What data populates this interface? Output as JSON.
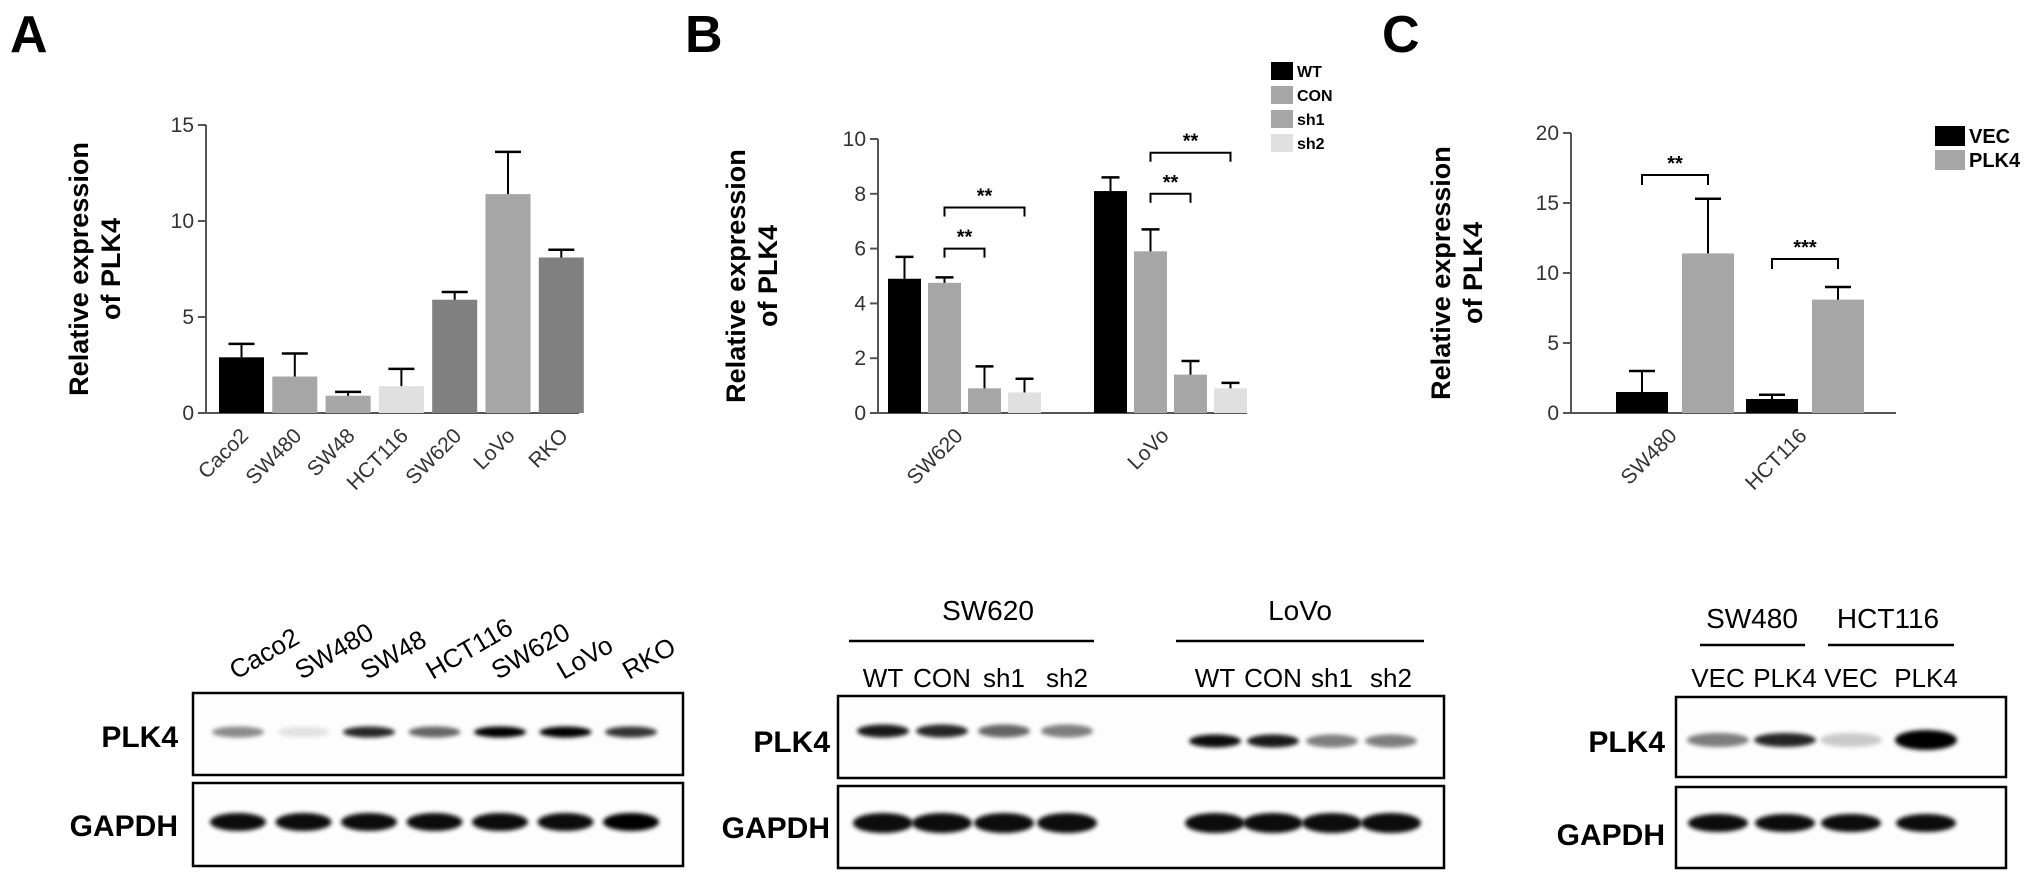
{
  "panels": {
    "a": {
      "letter": "A"
    },
    "b": {
      "letter": "B"
    },
    "c": {
      "letter": "C"
    }
  },
  "colors": {
    "black": "#000000",
    "dark_gray": "#808080",
    "mid_gray": "#a6a6a6",
    "light_gray": "#e0e0e0",
    "axis": "#555555"
  },
  "chart_data": [
    {
      "type": "bar",
      "panel": "A",
      "ylabel": [
        "Relative expression",
        "of PLK4"
      ],
      "ylim": [
        0,
        15
      ],
      "yticks": [
        0,
        5,
        10,
        15
      ],
      "categories": [
        "Caco2",
        "SW480",
        "SW48",
        "HCT116",
        "SW620",
        "LoVo",
        "RKO"
      ],
      "values": [
        2.9,
        1.9,
        0.9,
        1.4,
        5.9,
        11.4,
        8.1
      ],
      "errors": [
        0.7,
        1.2,
        0.2,
        0.9,
        0.4,
        2.2,
        0.4
      ],
      "bar_colors": [
        "#000000",
        "#a6a6a6",
        "#a6a6a6",
        "#e0e0e0",
        "#808080",
        "#a6a6a6",
        "#808080"
      ]
    },
    {
      "type": "bar",
      "panel": "B",
      "ylabel": [
        "Relative expression",
        "of PLK4"
      ],
      "ylim": [
        0,
        10
      ],
      "yticks": [
        0,
        2,
        4,
        6,
        8,
        10
      ],
      "categories": [
        "SW620",
        "LoVo"
      ],
      "series": [
        {
          "name": "WT",
          "values": [
            4.9,
            8.1
          ],
          "errors": [
            0.8,
            0.5
          ],
          "color": "#000000"
        },
        {
          "name": "CON",
          "values": [
            4.75,
            5.9
          ],
          "errors": [
            0.2,
            0.8
          ],
          "color": "#a6a6a6"
        },
        {
          "name": "sh1",
          "values": [
            0.9,
            1.4
          ],
          "errors": [
            0.8,
            0.5
          ],
          "color": "#a6a6a6"
        },
        {
          "name": "sh2",
          "values": [
            0.75,
            0.9
          ],
          "errors": [
            0.5,
            0.2
          ],
          "color": "#e0e0e0"
        }
      ],
      "significance": [
        {
          "group": 0,
          "from": 1,
          "to": 2,
          "label": "**",
          "level": 6.0
        },
        {
          "group": 0,
          "from": 1,
          "to": 3,
          "label": "**",
          "level": 7.5
        },
        {
          "group": 1,
          "from": 1,
          "to": 2,
          "label": "**",
          "level": 8.0
        },
        {
          "group": 1,
          "from": 1,
          "to": 3,
          "label": "**",
          "level": 9.5
        }
      ]
    },
    {
      "type": "bar",
      "panel": "C",
      "ylabel": [
        "Relative expression",
        "of PLK4"
      ],
      "ylim": [
        0,
        20
      ],
      "yticks": [
        0,
        5,
        10,
        15,
        20
      ],
      "categories": [
        "SW480",
        "HCT116"
      ],
      "series": [
        {
          "name": "VEC",
          "values": [
            1.5,
            1.0
          ],
          "errors": [
            1.5,
            0.3
          ],
          "color": "#000000"
        },
        {
          "name": "PLK4",
          "values": [
            11.4,
            8.1
          ],
          "errors": [
            3.9,
            0.9
          ],
          "color": "#a6a6a6"
        }
      ],
      "significance": [
        {
          "group": 0,
          "from": 0,
          "to": 1,
          "label": "**",
          "level": 17
        },
        {
          "group": 1,
          "from": 0,
          "to": 1,
          "label": "***",
          "level": 11
        }
      ]
    }
  ],
  "western": {
    "a": {
      "lanes": [
        "Caco2",
        "SW480",
        "SW48",
        "HCT116",
        "SW620",
        "LoVo",
        "RKO"
      ],
      "rows": [
        "PLK4",
        "GAPDH"
      ],
      "plk4_intensity": [
        0.45,
        0.1,
        0.85,
        0.6,
        1.0,
        1.0,
        0.8
      ],
      "gapdh_intensity": [
        0.95,
        0.95,
        0.95,
        0.95,
        0.95,
        0.95,
        1.0
      ]
    },
    "b": {
      "groups": [
        "SW620",
        "LoVo"
      ],
      "lanes": [
        "WT",
        "CON",
        "sh1",
        "sh2",
        "WT",
        "CON",
        "sh1",
        "sh2"
      ],
      "rows": [
        "PLK4",
        "GAPDH"
      ],
      "plk4_intensity": [
        0.9,
        0.85,
        0.6,
        0.5,
        0.95,
        0.9,
        0.5,
        0.5
      ],
      "gapdh_intensity": [
        0.95,
        0.95,
        0.95,
        0.95,
        0.95,
        0.95,
        0.95,
        0.95
      ]
    },
    "c": {
      "groups": [
        "SW480",
        "HCT116"
      ],
      "lanes": [
        "VEC",
        "PLK4",
        "VEC",
        "PLK4"
      ],
      "rows": [
        "PLK4",
        "GAPDH"
      ],
      "plk4_intensity": [
        0.5,
        0.85,
        0.2,
        1.0
      ],
      "gapdh_intensity": [
        0.95,
        0.95,
        0.95,
        0.95
      ]
    }
  }
}
